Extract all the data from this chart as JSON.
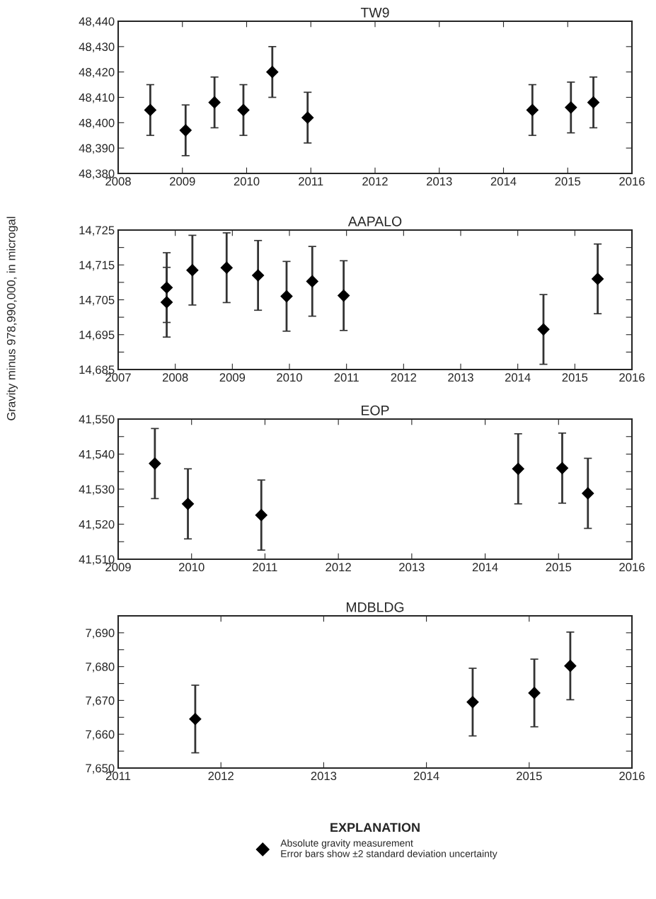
{
  "chart_data": [
    {
      "type": "scatter",
      "title": "TW9",
      "marker": "diamond",
      "grid": false,
      "legend": false,
      "series": [
        {
          "color": "#000000",
          "x": [
            2008.5,
            2009.05,
            2009.5,
            2009.95,
            2010.4,
            2010.95,
            2014.45,
            2015.05,
            2015.4
          ],
          "values": [
            48405,
            48397,
            48408,
            48405,
            48420,
            48402,
            48405,
            48406,
            48408
          ],
          "errors": [
            10,
            10,
            10,
            10,
            10,
            10,
            10,
            10,
            10
          ]
        }
      ],
      "xlim": [
        2008,
        2016
      ],
      "xticks": [
        2008,
        2009,
        2010,
        2011,
        2012,
        2013,
        2014,
        2015,
        2016
      ],
      "ylim": [
        48380,
        48440
      ],
      "yticks": [
        {
          "value": 48380,
          "label": "48,380"
        },
        {
          "value": 48390,
          "label": "48,390"
        },
        {
          "value": 48400,
          "label": "48,400"
        },
        {
          "value": 48410,
          "label": "48,410"
        },
        {
          "value": 48420,
          "label": "48,420"
        },
        {
          "value": 48430,
          "label": "48,430"
        },
        {
          "value": 48440,
          "label": "48,440"
        }
      ]
    },
    {
      "type": "scatter",
      "title": "AAPALO",
      "ylabel": "Gravity minus 978,990,000, in microgal",
      "marker": "diamond",
      "grid": false,
      "legend": false,
      "series": [
        {
          "color": "#000000",
          "x": [
            2007.85,
            2007.85,
            2008.3,
            2008.9,
            2009.45,
            2009.95,
            2010.4,
            2010.95,
            2014.45,
            2015.4
          ],
          "values": [
            14708.5,
            14704.3,
            14713.5,
            14714.2,
            14712,
            14706,
            14710.3,
            14706.2,
            14696.5,
            14711
          ],
          "errors": [
            10,
            10,
            10,
            10,
            10,
            10,
            10,
            10,
            10,
            10
          ]
        }
      ],
      "xlim": [
        2007,
        2016
      ],
      "xticks": [
        2007,
        2008,
        2009,
        2010,
        2011,
        2012,
        2013,
        2014,
        2015,
        2016
      ],
      "ylim": [
        14685,
        14725
      ],
      "yticks": [
        {
          "value": 14685,
          "label": "14,685"
        },
        {
          "value": 14690,
          "label": null
        },
        {
          "value": 14695,
          "label": "14,695"
        },
        {
          "value": 14700,
          "label": null
        },
        {
          "value": 14705,
          "label": "14,705"
        },
        {
          "value": 14710,
          "label": null
        },
        {
          "value": 14715,
          "label": "14,715"
        },
        {
          "value": 14720,
          "label": null
        },
        {
          "value": 14725,
          "label": "14,725"
        }
      ]
    },
    {
      "type": "scatter",
      "title": "EOP",
      "marker": "diamond",
      "grid": false,
      "legend": false,
      "series": [
        {
          "color": "#000000",
          "x": [
            2009.5,
            2009.95,
            2010.95,
            2014.45,
            2015.05,
            2015.4
          ],
          "values": [
            41537.3,
            41525.8,
            41522.6,
            41535.8,
            41536,
            41528.8
          ],
          "errors": [
            10,
            10,
            10,
            10,
            10,
            10
          ]
        }
      ],
      "xlim": [
        2009,
        2016
      ],
      "xticks": [
        2009,
        2010,
        2011,
        2012,
        2013,
        2014,
        2015,
        2016
      ],
      "ylim": [
        41510,
        41550
      ],
      "yticks": [
        {
          "value": 41510,
          "label": "41,510"
        },
        {
          "value": 41515,
          "label": null
        },
        {
          "value": 41520,
          "label": "41,520"
        },
        {
          "value": 41525,
          "label": null
        },
        {
          "value": 41530,
          "label": "41,530"
        },
        {
          "value": 41535,
          "label": null
        },
        {
          "value": 41540,
          "label": "41,540"
        },
        {
          "value": 41545,
          "label": null
        },
        {
          "value": 41550,
          "label": "41,550"
        }
      ]
    },
    {
      "type": "scatter",
      "title": "MDBLDG",
      "marker": "diamond",
      "grid": false,
      "legend": "bottom",
      "legend_title": "EXPLANATION",
      "series": [
        {
          "name": "Absolute gravity measurement\nError bars show ±2 standard deviation uncertainty",
          "color": "#000000",
          "x": [
            2011.75,
            2014.45,
            2015.05,
            2015.4
          ],
          "values": [
            7664.5,
            7669.5,
            7672.2,
            7680.2
          ],
          "errors": [
            10,
            10,
            10,
            10
          ]
        }
      ],
      "xlim": [
        2011,
        2016
      ],
      "xticks": [
        2011,
        2012,
        2013,
        2014,
        2015,
        2016
      ],
      "ylim": [
        7650,
        7695
      ],
      "yticks": [
        {
          "value": 7650,
          "label": "7,650"
        },
        {
          "value": 7655,
          "label": null
        },
        {
          "value": 7660,
          "label": "7,660"
        },
        {
          "value": 7665,
          "label": null
        },
        {
          "value": 7670,
          "label": "7,670"
        },
        {
          "value": 7675,
          "label": null
        },
        {
          "value": 7680,
          "label": "7,680"
        },
        {
          "value": 7685,
          "label": null
        },
        {
          "value": 7690,
          "label": "7,690"
        }
      ]
    }
  ]
}
